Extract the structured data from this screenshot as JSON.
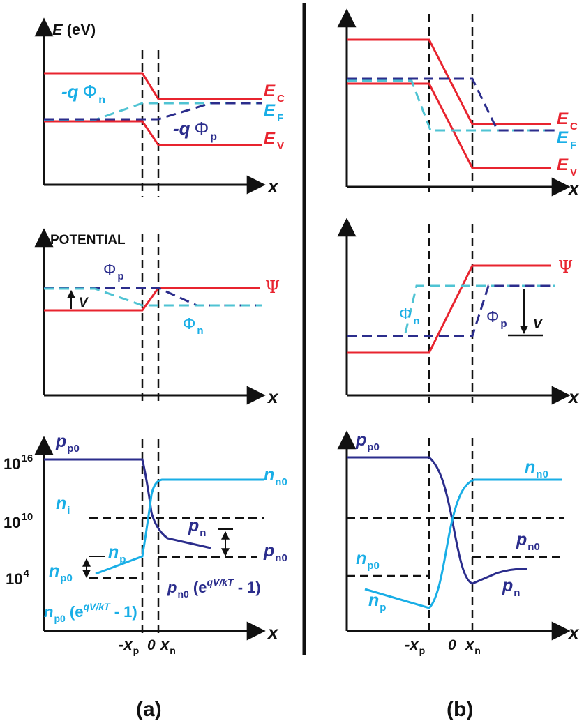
{
  "colors": {
    "axis": "#111111",
    "red": "#e8242f",
    "navy": "#2b2d8c",
    "cyan": "#19aee6",
    "dashed_cyan": "#4fc3d3",
    "guide": "#111111"
  },
  "panel_a": {
    "caption": "(a)",
    "band": {
      "y_axis_symbol": "E",
      "y_axis_unit": "(eV)",
      "x_axis": "x",
      "ec_sym": "E",
      "ec_sub": "C",
      "ef_sym": "E",
      "ef_sub": "F",
      "ev_sym": "E",
      "ev_sub": "V",
      "qphin_prefix": "-q",
      "qphin_sym": "Φ",
      "qphin_sub": "n",
      "qphip_prefix": "-q",
      "qphip_sym": "Φ",
      "qphip_sub": "p"
    },
    "potential": {
      "y_axis": "POTENTIAL",
      "x_axis": "x",
      "psi": "Ψ",
      "phip_sym": "Φ",
      "phip_sub": "p",
      "phin_sym": "Φ",
      "phin_sub": "n",
      "v": "V"
    },
    "carrier": {
      "x_axis": "x",
      "tick16_base": "10",
      "tick16_exp": "16",
      "tick10_base": "10",
      "tick10_exp": "10",
      "tick4_base": "10",
      "tick4_exp": "4",
      "pp0_sym": "p",
      "pp0_sub": "p0",
      "nn0_sym": "n",
      "nn0_sub": "n0",
      "ni_sym": "n",
      "ni_sub": "i",
      "pn_sym": "p",
      "pn_sub": "n",
      "pn0_sym": "p",
      "pn0_sub": "n0",
      "np_sym": "n",
      "np_sub": "p",
      "np0_sym": "n",
      "np0_sub": "p0",
      "pn0_expr_sym": "p",
      "pn0_expr_sub": "n0",
      "pn0_expr_open": " (e",
      "pn0_expr_exp": "qV/kT",
      "pn0_expr_close": " - 1)",
      "np0_expr_sym": "n",
      "np0_expr_sub": "p0",
      "np0_expr_open": " (e",
      "np0_expr_exp": "qV/kT",
      "np0_expr_close": " - 1)",
      "xp_prefix": "-x",
      "xp_sub": "p",
      "zero": "0",
      "xn_sym": "x",
      "xn_sub": "n"
    }
  },
  "panel_b": {
    "caption": "(b)",
    "band": {
      "x_axis": "x",
      "ec_sym": "E",
      "ec_sub": "C",
      "ef_sym": "E",
      "ef_sub": "F",
      "ev_sym": "E",
      "ev_sub": "V"
    },
    "potential": {
      "x_axis": "x",
      "psi": "Ψ",
      "phin_sym": "Φ",
      "phin_sub": "n",
      "phip_sym": "Φ",
      "phip_sub": "p",
      "v": "V"
    },
    "carrier": {
      "x_axis": "x",
      "pp0_sym": "p",
      "pp0_sub": "p0",
      "nn0_sym": "n",
      "nn0_sub": "n0",
      "pn0_sym": "p",
      "pn0_sub": "n0",
      "np0_sym": "n",
      "np0_sub": "p0",
      "np_sym": "n",
      "np_sub": "p",
      "pn_sym": "p",
      "pn_sub": "n",
      "xp_prefix": "-x",
      "xp_sub": "p",
      "zero": "0",
      "xn_sym": "x",
      "xn_sub": "n"
    }
  }
}
